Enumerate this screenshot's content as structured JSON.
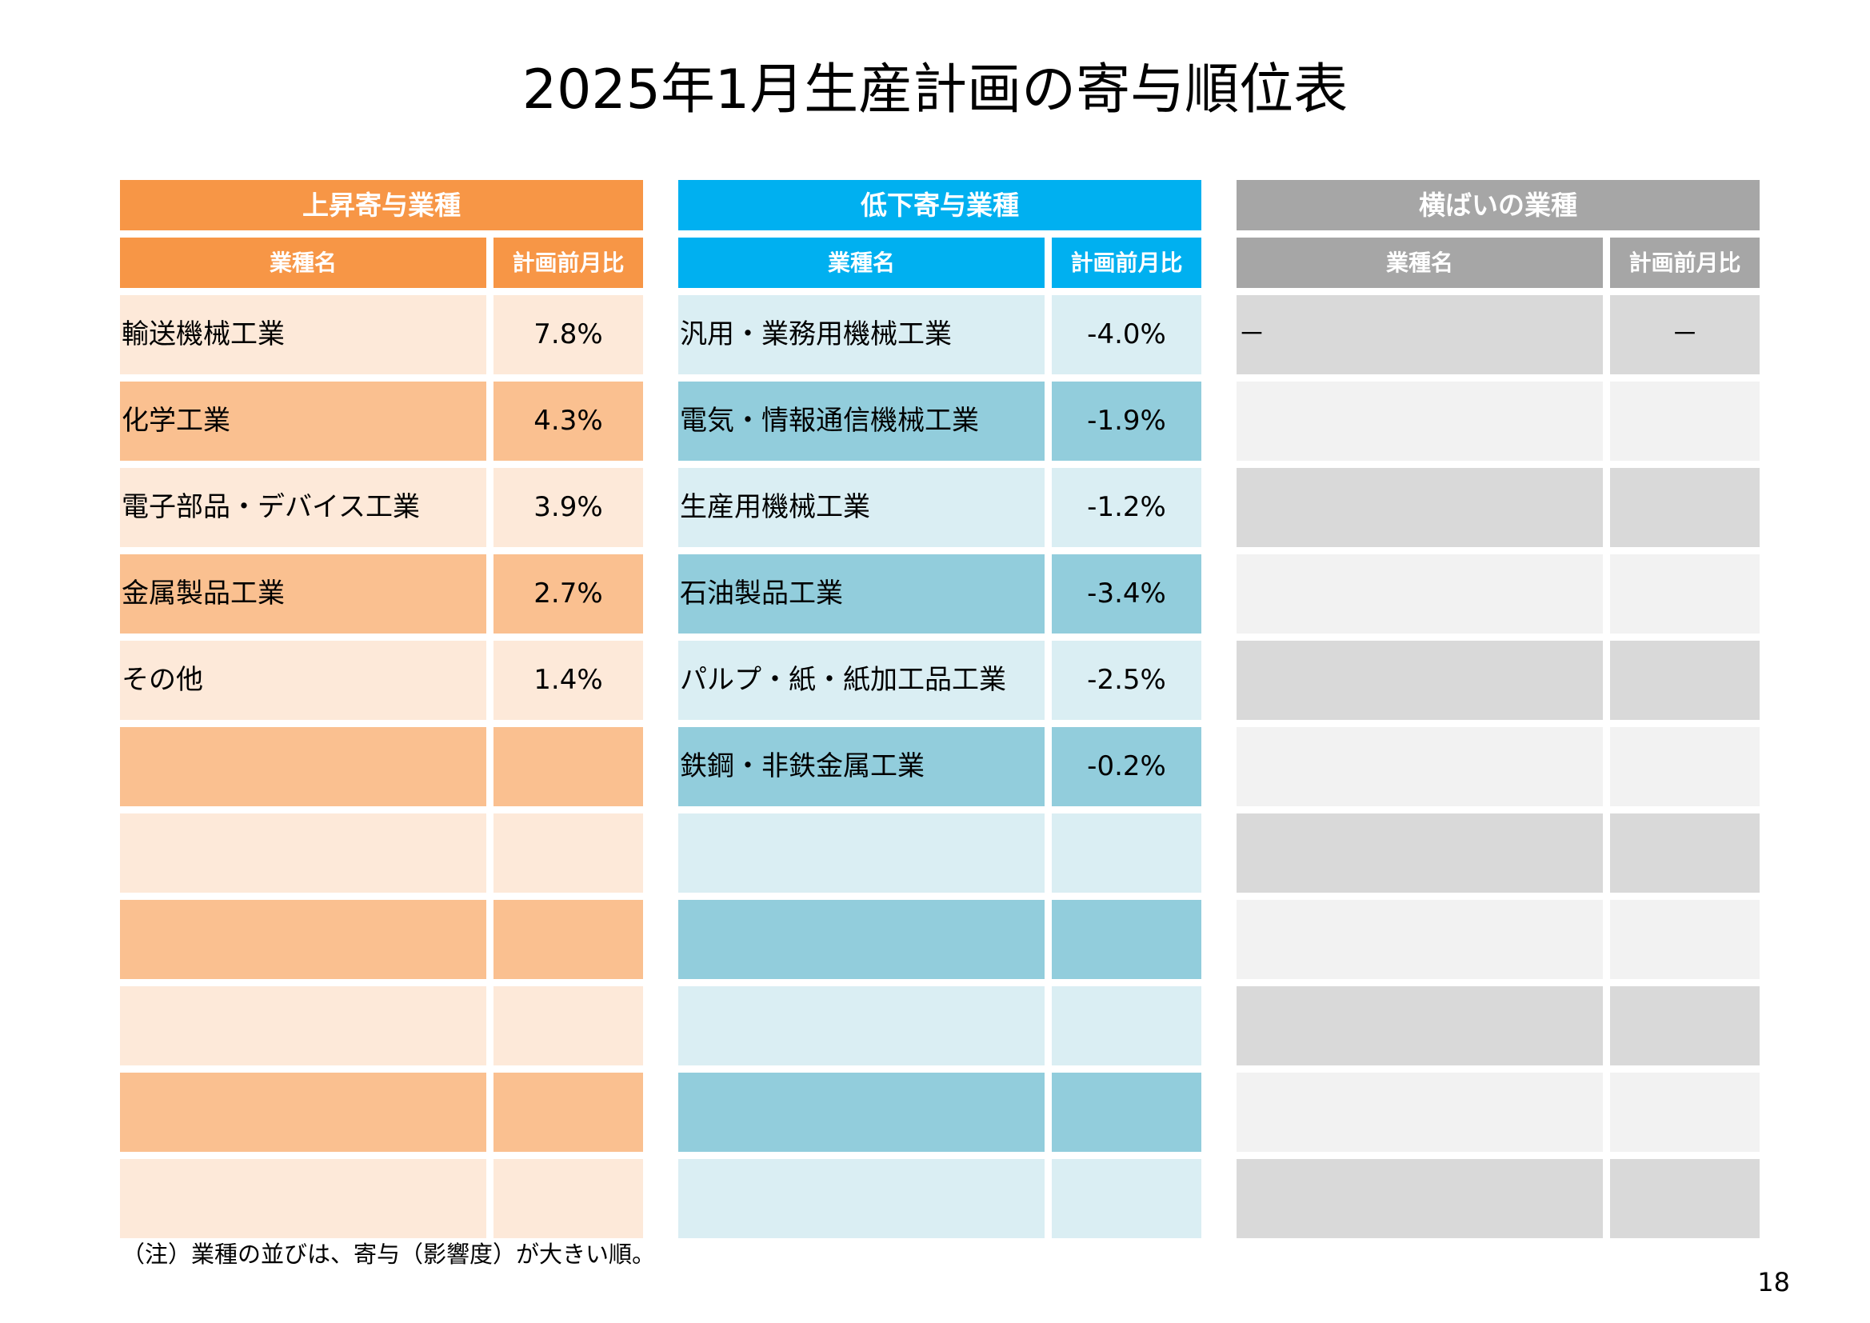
{
  "title": "2025年1月生産計画の寄与順位表",
  "panels": {
    "rising": {
      "heading": "上昇寄与業種",
      "col_name": "業種名",
      "col_value": "計画前月比",
      "rows": [
        {
          "name": "輸送機械工業",
          "value": "7.8%"
        },
        {
          "name": "化学工業",
          "value": "4.3%"
        },
        {
          "name": "電子部品・デバイス工業",
          "value": "3.9%"
        },
        {
          "name": "金属製品工業",
          "value": "2.7%"
        },
        {
          "name": "その他",
          "value": "1.4%"
        },
        {
          "name": "",
          "value": ""
        },
        {
          "name": "",
          "value": ""
        },
        {
          "name": "",
          "value": ""
        },
        {
          "name": "",
          "value": ""
        },
        {
          "name": "",
          "value": ""
        },
        {
          "name": "",
          "value": ""
        }
      ]
    },
    "falling": {
      "heading": "低下寄与業種",
      "col_name": "業種名",
      "col_value": "計画前月比",
      "rows": [
        {
          "name": "汎用・業務用機械工業",
          "value": "-4.0%"
        },
        {
          "name": "電気・情報通信機械工業",
          "value": "-1.9%"
        },
        {
          "name": "生産用機械工業",
          "value": "-1.2%"
        },
        {
          "name": "石油製品工業",
          "value": "-3.4%"
        },
        {
          "name": "パルプ・紙・紙加工品工業",
          "value": "-2.5%"
        },
        {
          "name": "鉄鋼・非鉄金属工業",
          "value": "-0.2%"
        },
        {
          "name": "",
          "value": ""
        },
        {
          "name": "",
          "value": ""
        },
        {
          "name": "",
          "value": ""
        },
        {
          "name": "",
          "value": ""
        },
        {
          "name": "",
          "value": ""
        }
      ]
    },
    "flat": {
      "heading": "横ばいの業種",
      "col_name": "業種名",
      "col_value": "計画前月比",
      "rows": [
        {
          "name": "－",
          "value": "－"
        },
        {
          "name": "",
          "value": ""
        },
        {
          "name": "",
          "value": ""
        },
        {
          "name": "",
          "value": ""
        },
        {
          "name": "",
          "value": ""
        },
        {
          "name": "",
          "value": ""
        },
        {
          "name": "",
          "value": ""
        },
        {
          "name": "",
          "value": ""
        },
        {
          "name": "",
          "value": ""
        },
        {
          "name": "",
          "value": ""
        },
        {
          "name": "",
          "value": ""
        }
      ]
    }
  },
  "note": "（注）業種の並びは、寄与（影響度）が大きい順。",
  "page_number": "18"
}
